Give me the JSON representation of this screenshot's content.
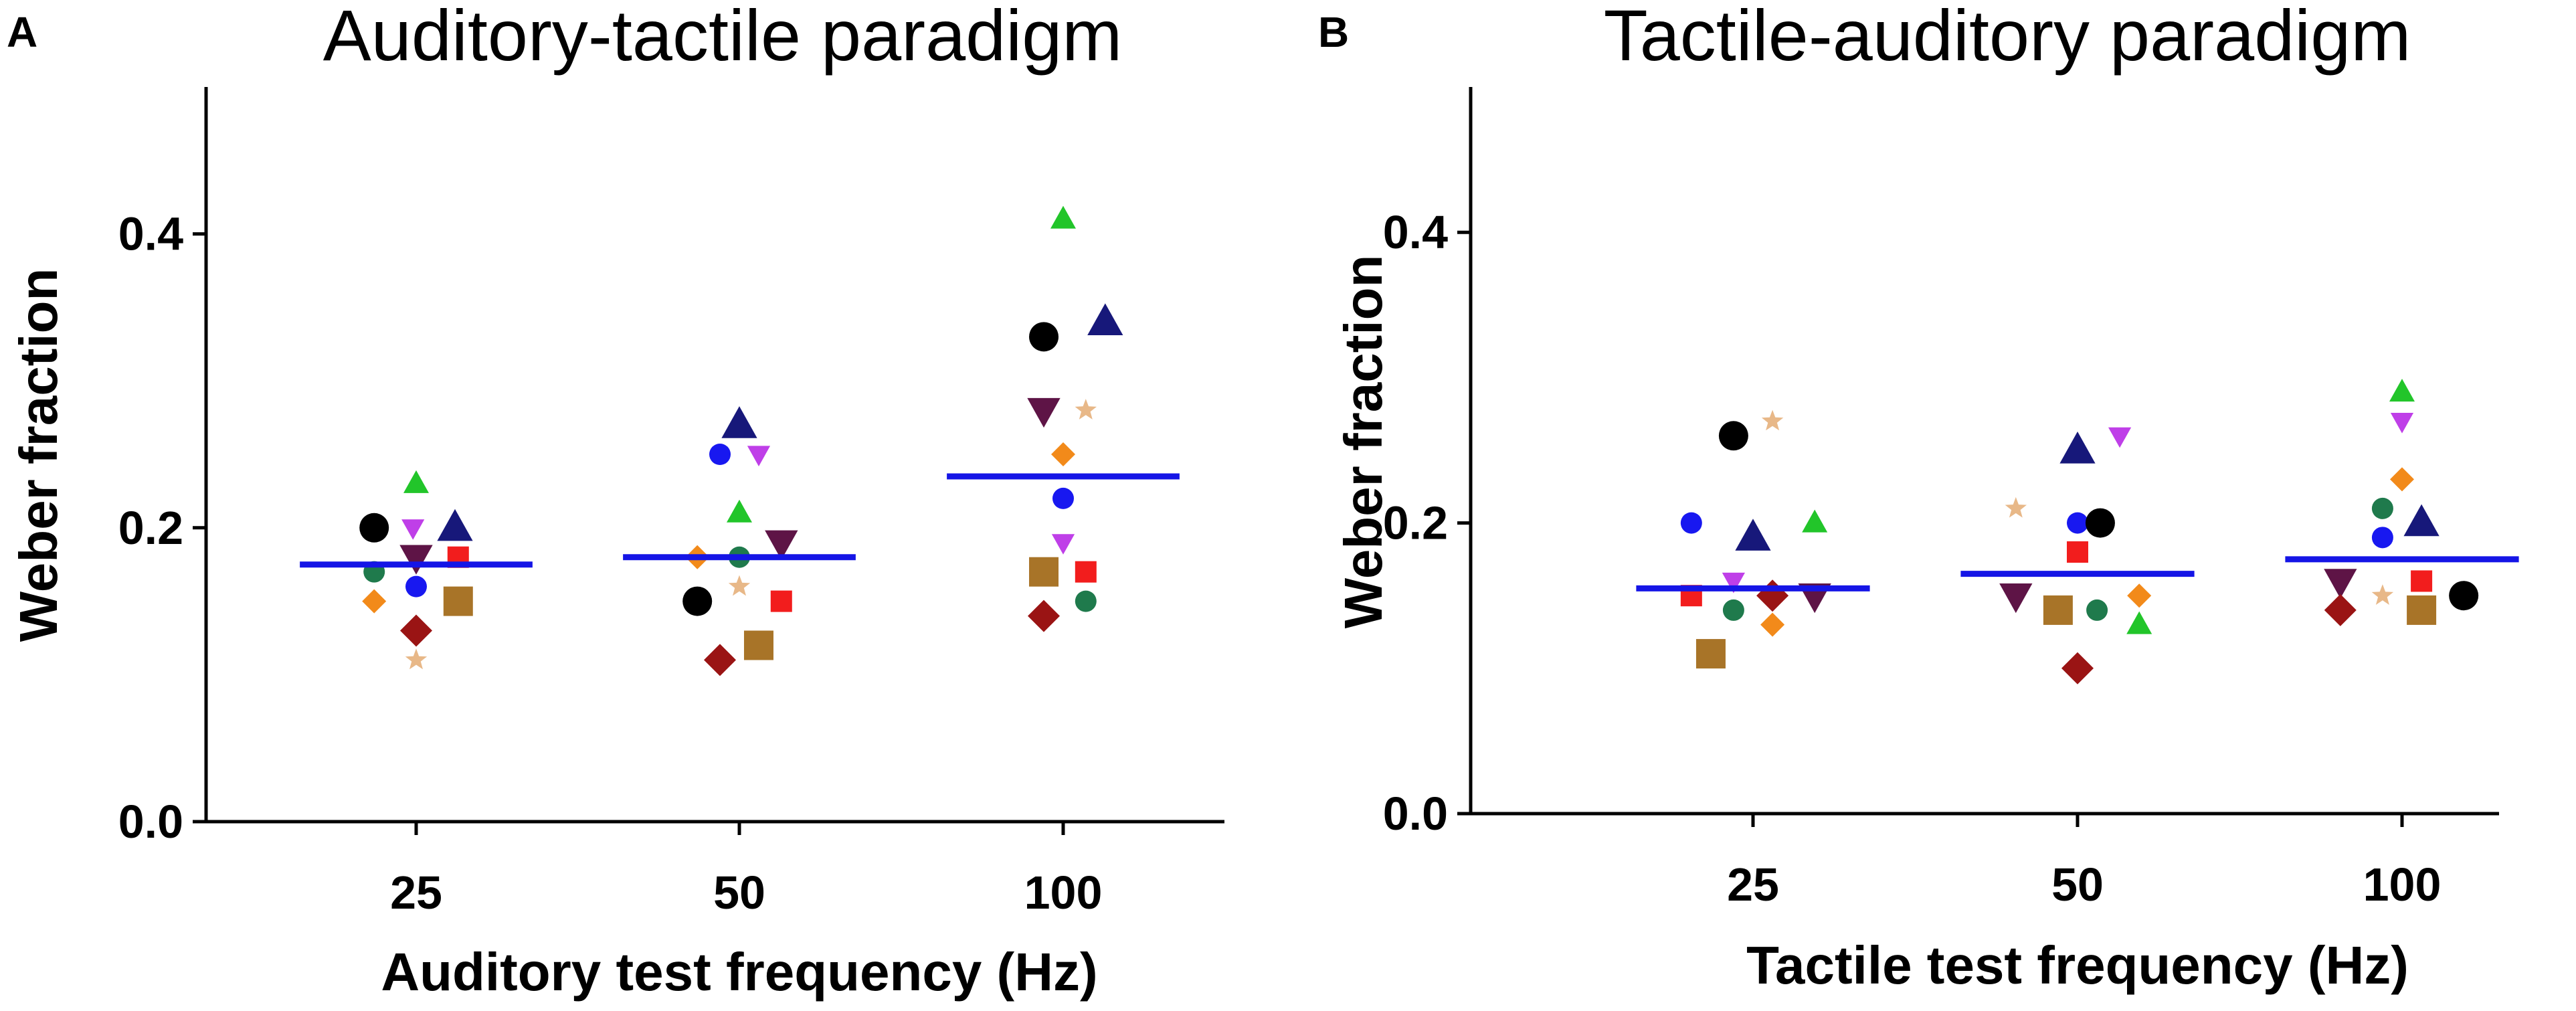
{
  "chart_data": [
    {
      "type": "scatter",
      "panel": "A",
      "title": "Auditory-tactile paradigm",
      "xlabel": "Auditory test frequency (Hz)",
      "ylabel": "Weber fraction",
      "categories": [
        "25",
        "50",
        "100"
      ],
      "ylim": [
        0,
        0.5
      ],
      "yticks": [
        0.0,
        0.2,
        0.4
      ],
      "ytick_labels": [
        "0.0",
        "0.2",
        "0.4"
      ],
      "grid": false,
      "mean_line": {
        "color": "#1515e6",
        "values": [
          0.175,
          0.18,
          0.235
        ]
      },
      "points": [
        {
          "category": "25",
          "offset": -0.13,
          "y": 0.2,
          "marker": "circle-large",
          "color": "#000000"
        },
        {
          "category": "25",
          "offset": 0.0,
          "y": 0.23,
          "marker": "triangle-up",
          "color": "#22c52a"
        },
        {
          "category": "25",
          "offset": 0.12,
          "y": 0.2,
          "marker": "triangle-up-large",
          "color": "#17187a"
        },
        {
          "category": "25",
          "offset": -0.01,
          "y": 0.2,
          "marker": "triangle-down",
          "color": "#bf3fe8"
        },
        {
          "category": "25",
          "offset": 0.0,
          "y": 0.18,
          "marker": "triangle-down-large",
          "color": "#5e1446"
        },
        {
          "category": "25",
          "offset": 0.13,
          "y": 0.18,
          "marker": "square",
          "color": "#f21d1d"
        },
        {
          "category": "25",
          "offset": -0.13,
          "y": 0.17,
          "marker": "circle",
          "color": "#1f7a4c"
        },
        {
          "category": "25",
          "offset": 0.0,
          "y": 0.16,
          "marker": "circle",
          "color": "#1818f0"
        },
        {
          "category": "25",
          "offset": -0.13,
          "y": 0.15,
          "marker": "diamond",
          "color": "#f28a1a"
        },
        {
          "category": "25",
          "offset": 0.13,
          "y": 0.15,
          "marker": "square-large",
          "color": "#a87428"
        },
        {
          "category": "25",
          "offset": 0.0,
          "y": 0.13,
          "marker": "diamond-large",
          "color": "#9a1414"
        },
        {
          "category": "25",
          "offset": 0.0,
          "y": 0.11,
          "marker": "star",
          "color": "#e8b888"
        },
        {
          "category": "50",
          "offset": 0.0,
          "y": 0.27,
          "marker": "triangle-up-large",
          "color": "#17187a"
        },
        {
          "category": "50",
          "offset": -0.06,
          "y": 0.25,
          "marker": "circle",
          "color": "#1818f0"
        },
        {
          "category": "50",
          "offset": 0.06,
          "y": 0.25,
          "marker": "triangle-down",
          "color": "#bf3fe8"
        },
        {
          "category": "50",
          "offset": 0.0,
          "y": 0.21,
          "marker": "triangle-up",
          "color": "#22c52a"
        },
        {
          "category": "50",
          "offset": 0.13,
          "y": 0.19,
          "marker": "triangle-down-large",
          "color": "#5e1446"
        },
        {
          "category": "50",
          "offset": -0.13,
          "y": 0.18,
          "marker": "diamond",
          "color": "#f28a1a"
        },
        {
          "category": "50",
          "offset": 0.0,
          "y": 0.18,
          "marker": "circle",
          "color": "#1f7a4c"
        },
        {
          "category": "50",
          "offset": 0.0,
          "y": 0.16,
          "marker": "star",
          "color": "#e8b888"
        },
        {
          "category": "50",
          "offset": -0.13,
          "y": 0.15,
          "marker": "circle-large",
          "color": "#000000"
        },
        {
          "category": "50",
          "offset": 0.13,
          "y": 0.15,
          "marker": "square",
          "color": "#f21d1d"
        },
        {
          "category": "50",
          "offset": 0.06,
          "y": 0.12,
          "marker": "square-large",
          "color": "#a87428"
        },
        {
          "category": "50",
          "offset": -0.06,
          "y": 0.11,
          "marker": "diamond-large",
          "color": "#9a1414"
        },
        {
          "category": "100",
          "offset": 0.0,
          "y": 0.41,
          "marker": "triangle-up",
          "color": "#22c52a"
        },
        {
          "category": "100",
          "offset": 0.13,
          "y": 0.34,
          "marker": "triangle-up-large",
          "color": "#17187a"
        },
        {
          "category": "100",
          "offset": -0.06,
          "y": 0.33,
          "marker": "circle-large",
          "color": "#000000"
        },
        {
          "category": "100",
          "offset": -0.06,
          "y": 0.28,
          "marker": "triangle-down-large",
          "color": "#5e1446"
        },
        {
          "category": "100",
          "offset": 0.07,
          "y": 0.28,
          "marker": "star",
          "color": "#e8b888"
        },
        {
          "category": "100",
          "offset": 0.0,
          "y": 0.25,
          "marker": "diamond",
          "color": "#f28a1a"
        },
        {
          "category": "100",
          "offset": 0.0,
          "y": 0.22,
          "marker": "circle",
          "color": "#1818f0"
        },
        {
          "category": "100",
          "offset": 0.0,
          "y": 0.19,
          "marker": "triangle-down",
          "color": "#bf3fe8"
        },
        {
          "category": "100",
          "offset": -0.06,
          "y": 0.17,
          "marker": "square-large",
          "color": "#a87428"
        },
        {
          "category": "100",
          "offset": 0.07,
          "y": 0.17,
          "marker": "square",
          "color": "#f21d1d"
        },
        {
          "category": "100",
          "offset": 0.07,
          "y": 0.15,
          "marker": "circle",
          "color": "#1f7a4c"
        },
        {
          "category": "100",
          "offset": -0.06,
          "y": 0.14,
          "marker": "diamond-large",
          "color": "#9a1414"
        }
      ]
    },
    {
      "type": "scatter",
      "panel": "B",
      "title": "Tactile-auditory paradigm",
      "xlabel": "Tactile test frequency (Hz)",
      "ylabel": "Weber fraction",
      "categories": [
        "25",
        "50",
        "100"
      ],
      "ylim": [
        0,
        0.5
      ],
      "yticks": [
        0.0,
        0.2,
        0.4
      ],
      "ytick_labels": [
        "0.0",
        "0.2",
        "0.4"
      ],
      "grid": false,
      "mean_line": {
        "color": "#1515e6",
        "values": [
          0.155,
          0.165,
          0.175
        ]
      },
      "points": [
        {
          "category": "25",
          "offset": -0.06,
          "y": 0.26,
          "marker": "circle-large",
          "color": "#000000"
        },
        {
          "category": "25",
          "offset": 0.06,
          "y": 0.27,
          "marker": "star",
          "color": "#e8b888"
        },
        {
          "category": "25",
          "offset": -0.19,
          "y": 0.2,
          "marker": "circle",
          "color": "#1818f0"
        },
        {
          "category": "25",
          "offset": 0.19,
          "y": 0.2,
          "marker": "triangle-up",
          "color": "#22c52a"
        },
        {
          "category": "25",
          "offset": 0.0,
          "y": 0.19,
          "marker": "triangle-up-large",
          "color": "#17187a"
        },
        {
          "category": "25",
          "offset": -0.06,
          "y": 0.16,
          "marker": "triangle-down",
          "color": "#bf3fe8"
        },
        {
          "category": "25",
          "offset": -0.19,
          "y": 0.15,
          "marker": "square",
          "color": "#f21d1d"
        },
        {
          "category": "25",
          "offset": 0.06,
          "y": 0.15,
          "marker": "diamond-large",
          "color": "#9a1414"
        },
        {
          "category": "25",
          "offset": 0.19,
          "y": 0.15,
          "marker": "triangle-down-large",
          "color": "#5e1446"
        },
        {
          "category": "25",
          "offset": -0.06,
          "y": 0.14,
          "marker": "circle",
          "color": "#1f7a4c"
        },
        {
          "category": "25",
          "offset": 0.06,
          "y": 0.13,
          "marker": "diamond",
          "color": "#f28a1a"
        },
        {
          "category": "25",
          "offset": -0.13,
          "y": 0.11,
          "marker": "square-large",
          "color": "#a87428"
        },
        {
          "category": "50",
          "offset": 0.13,
          "y": 0.26,
          "marker": "triangle-down",
          "color": "#bf3fe8"
        },
        {
          "category": "50",
          "offset": 0.0,
          "y": 0.25,
          "marker": "triangle-up-large",
          "color": "#17187a"
        },
        {
          "category": "50",
          "offset": -0.19,
          "y": 0.21,
          "marker": "star",
          "color": "#e8b888"
        },
        {
          "category": "50",
          "offset": 0.0,
          "y": 0.2,
          "marker": "circle",
          "color": "#1818f0"
        },
        {
          "category": "50",
          "offset": 0.07,
          "y": 0.2,
          "marker": "circle-large",
          "color": "#000000"
        },
        {
          "category": "50",
          "offset": 0.0,
          "y": 0.18,
          "marker": "square",
          "color": "#f21d1d"
        },
        {
          "category": "50",
          "offset": -0.19,
          "y": 0.15,
          "marker": "triangle-down-large",
          "color": "#5e1446"
        },
        {
          "category": "50",
          "offset": 0.19,
          "y": 0.15,
          "marker": "diamond",
          "color": "#f28a1a"
        },
        {
          "category": "50",
          "offset": -0.06,
          "y": 0.14,
          "marker": "square-large",
          "color": "#a87428"
        },
        {
          "category": "50",
          "offset": 0.06,
          "y": 0.14,
          "marker": "circle",
          "color": "#1f7a4c"
        },
        {
          "category": "50",
          "offset": 0.19,
          "y": 0.13,
          "marker": "triangle-up",
          "color": "#22c52a"
        },
        {
          "category": "50",
          "offset": 0.0,
          "y": 0.1,
          "marker": "diamond-large",
          "color": "#9a1414"
        },
        {
          "category": "100",
          "offset": 0.0,
          "y": 0.29,
          "marker": "triangle-up",
          "color": "#22c52a"
        },
        {
          "category": "100",
          "offset": 0.0,
          "y": 0.27,
          "marker": "triangle-down",
          "color": "#bf3fe8"
        },
        {
          "category": "100",
          "offset": 0.0,
          "y": 0.23,
          "marker": "diamond",
          "color": "#f28a1a"
        },
        {
          "category": "100",
          "offset": -0.06,
          "y": 0.21,
          "marker": "circle",
          "color": "#1f7a4c"
        },
        {
          "category": "100",
          "offset": 0.06,
          "y": 0.2,
          "marker": "triangle-up-large",
          "color": "#17187a"
        },
        {
          "category": "100",
          "offset": -0.06,
          "y": 0.19,
          "marker": "circle",
          "color": "#1818f0"
        },
        {
          "category": "100",
          "offset": -0.19,
          "y": 0.16,
          "marker": "triangle-down-large",
          "color": "#5e1446"
        },
        {
          "category": "100",
          "offset": 0.06,
          "y": 0.16,
          "marker": "square",
          "color": "#f21d1d"
        },
        {
          "category": "100",
          "offset": -0.06,
          "y": 0.15,
          "marker": "star",
          "color": "#e8b888"
        },
        {
          "category": "100",
          "offset": 0.19,
          "y": 0.15,
          "marker": "circle-large",
          "color": "#000000"
        },
        {
          "category": "100",
          "offset": -0.19,
          "y": 0.14,
          "marker": "diamond-large",
          "color": "#9a1414"
        },
        {
          "category": "100",
          "offset": 0.06,
          "y": 0.14,
          "marker": "square-large",
          "color": "#a87428"
        }
      ]
    }
  ]
}
